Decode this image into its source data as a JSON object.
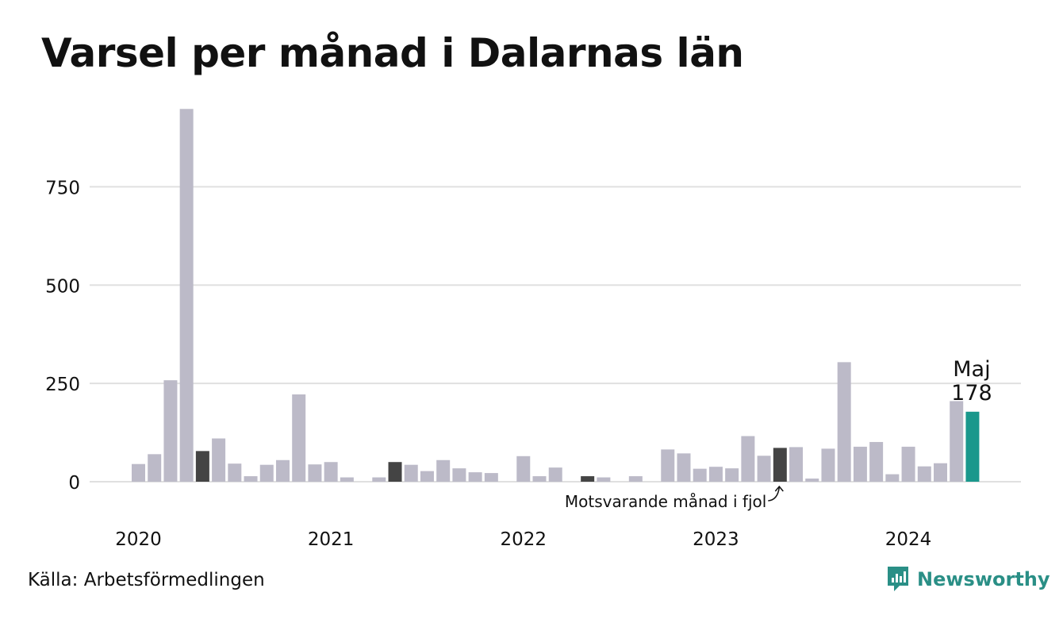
{
  "title": "Varsel per månad i Dalarnas län",
  "source": "Källa: Arbetsförmedlingen",
  "brand": {
    "name": "Newsworthy",
    "icon": "newsworthy-logo-icon"
  },
  "colors": {
    "bar": "#bcbac8",
    "same_month_last_year": "#444444",
    "current": "#1a988c",
    "grid": "#e0e0e0",
    "brand": "#2a8f86"
  },
  "chart_data": {
    "type": "bar",
    "title": "Varsel per månad i Dalarnas län",
    "xlabel": "",
    "ylabel": "",
    "ylim": [
      0,
      950
    ],
    "yticks": [
      0,
      250,
      500,
      750
    ],
    "grid": true,
    "x_tick_labels": [
      {
        "label": "2020",
        "index": 0
      },
      {
        "label": "2021",
        "index": 12
      },
      {
        "label": "2022",
        "index": 24
      },
      {
        "label": "2023",
        "index": 36
      },
      {
        "label": "2024",
        "index": 48
      }
    ],
    "categories": [
      "2020-01",
      "2020-02",
      "2020-03",
      "2020-04",
      "2020-05",
      "2020-06",
      "2020-07",
      "2020-08",
      "2020-09",
      "2020-10",
      "2020-11",
      "2020-12",
      "2021-01",
      "2021-02",
      "2021-03",
      "2021-04",
      "2021-05",
      "2021-06",
      "2021-07",
      "2021-08",
      "2021-09",
      "2021-10",
      "2021-11",
      "2021-12",
      "2022-01",
      "2022-02",
      "2022-03",
      "2022-04",
      "2022-05",
      "2022-06",
      "2022-07",
      "2022-08",
      "2022-09",
      "2022-10",
      "2022-11",
      "2022-12",
      "2023-01",
      "2023-02",
      "2023-03",
      "2023-04",
      "2023-05",
      "2023-06",
      "2023-07",
      "2023-08",
      "2023-09",
      "2023-10",
      "2023-11",
      "2023-12",
      "2024-01",
      "2024-02",
      "2024-03",
      "2024-04",
      "2024-05"
    ],
    "values": [
      45,
      70,
      258,
      948,
      78,
      110,
      46,
      14,
      43,
      55,
      222,
      44,
      50,
      11,
      0,
      11,
      50,
      43,
      27,
      55,
      34,
      24,
      22,
      0,
      65,
      14,
      36,
      0,
      14,
      11,
      0,
      14,
      0,
      82,
      72,
      33,
      38,
      34,
      116,
      66,
      86,
      88,
      8,
      84,
      304,
      89,
      101,
      19,
      89,
      39,
      47,
      205,
      178
    ],
    "highlight": {
      "same_month_last_year": [
        4,
        16,
        28,
        40
      ],
      "current": 52
    },
    "annotations": {
      "current_label_month": "Maj",
      "current_label_value": "178",
      "last_year_note": "Motsvarande månad i fjol"
    }
  }
}
